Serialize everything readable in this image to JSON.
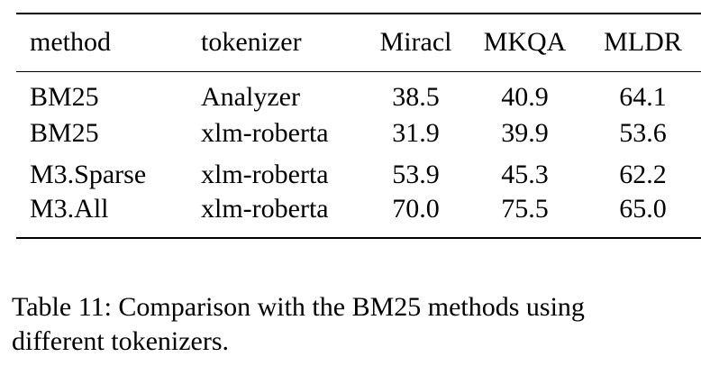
{
  "table": {
    "columns": [
      {
        "key": "method",
        "label": "method"
      },
      {
        "key": "tokenizer",
        "label": "tokenizer"
      },
      {
        "key": "miracl",
        "label": "Miracl"
      },
      {
        "key": "mkqa",
        "label": "MKQA"
      },
      {
        "key": "mldr",
        "label": "MLDR"
      }
    ],
    "rows": [
      {
        "method": "BM25",
        "tokenizer": "Analyzer",
        "miracl": "38.5",
        "mkqa": "40.9",
        "mldr": "64.1"
      },
      {
        "method": "BM25",
        "tokenizer": "xlm-roberta",
        "miracl": "31.9",
        "mkqa": "39.9",
        "mldr": "53.6"
      },
      {
        "method": "M3.Sparse",
        "tokenizer": "xlm-roberta",
        "miracl": "53.9",
        "mkqa": "45.3",
        "mldr": "62.2"
      },
      {
        "method": "M3.All",
        "tokenizer": "xlm-roberta",
        "miracl": "70.0",
        "mkqa": "75.5",
        "mldr": "65.0"
      }
    ]
  },
  "caption": {
    "line1": "Table 11: Comparison with the BM25 methods using",
    "line2": "different tokenizers.",
    "full_text": "Table 11: Comparison with the BM25 methods using different tokenizers."
  },
  "colors": {
    "text": "#000000",
    "background": "#ffffff",
    "rule": "#000000"
  }
}
